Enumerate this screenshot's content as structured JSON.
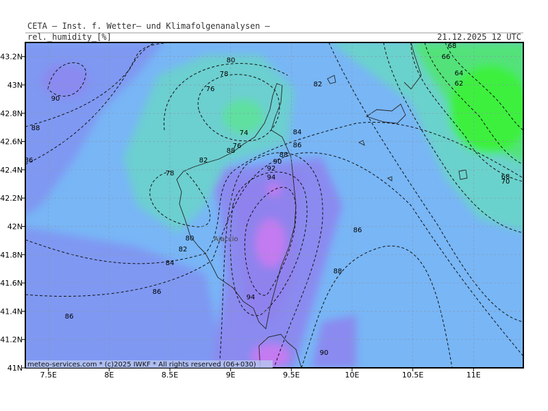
{
  "header": {
    "institute": "CETA — Inst. f. Wetter— und Klimafolgenanalysen —",
    "parameter": "rel._humidity_[%]",
    "valid_time": "21.12.2025 12 UTC"
  },
  "map": {
    "lonlim": [
      7.31,
      11.41
    ],
    "latlim": [
      41.0,
      43.3
    ],
    "xticks": [
      {
        "value": 7.5,
        "label": "7.5E"
      },
      {
        "value": 8,
        "label": "8E"
      },
      {
        "value": 8.5,
        "label": "8.5E"
      },
      {
        "value": 9,
        "label": "9E"
      },
      {
        "value": 9.5,
        "label": "9.5E"
      },
      {
        "value": 10,
        "label": "10E"
      },
      {
        "value": 10.5,
        "label": "10.5E"
      },
      {
        "value": 11,
        "label": "11E"
      }
    ],
    "yticks": [
      {
        "value": 41,
        "label": "41N"
      },
      {
        "value": 41.2,
        "label": "41.2N"
      },
      {
        "value": 41.4,
        "label": "41.4N"
      },
      {
        "value": 41.6,
        "label": "41.6N"
      },
      {
        "value": 41.8,
        "label": "41.8N"
      },
      {
        "value": 42,
        "label": "42N"
      },
      {
        "value": 42.2,
        "label": "42.2N"
      },
      {
        "value": 42.4,
        "label": "42.4N"
      },
      {
        "value": 42.6,
        "label": "42.6N"
      },
      {
        "value": 42.8,
        "label": "42.8N"
      },
      {
        "value": 43,
        "label": "43N"
      },
      {
        "value": 43.2,
        "label": "43.2N"
      }
    ],
    "grid": true,
    "contour_labels": [
      90,
      88,
      86,
      80,
      78,
      76,
      74,
      76,
      88,
      82,
      78,
      84,
      86,
      88,
      90,
      92,
      94,
      82,
      68,
      66,
      64,
      62,
      68,
      70,
      80,
      82,
      84,
      86,
      86,
      86,
      88,
      94,
      90
    ],
    "city": "Ajaccio"
  },
  "footer": "meteo-services.com * (c)2025 IWKF * All rights reserved (06+030)"
}
